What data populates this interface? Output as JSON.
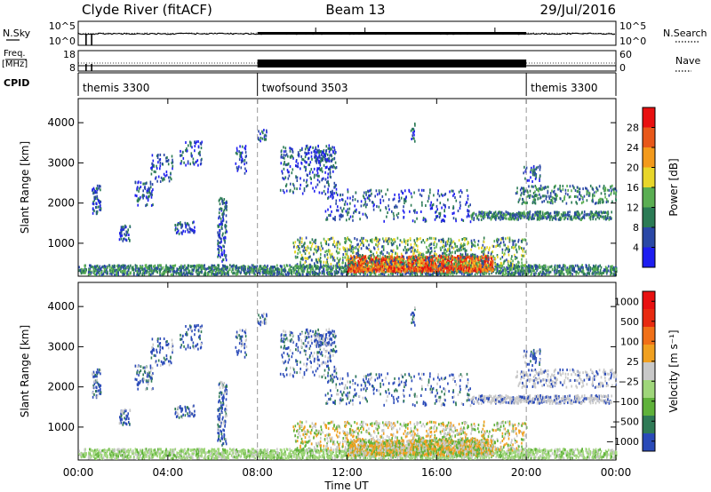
{
  "header": {
    "station": "Clyde River (fitACF)",
    "beam": "Beam 13",
    "date": "29/Jul/2016"
  },
  "chart_data": [
    {
      "type": "line",
      "name": "noise-panel",
      "left_label": "N.Sky",
      "left_ticks": [
        "10^5",
        "10^0"
      ],
      "right_label": "N.Search",
      "right_ticks": [
        "10^5",
        "10^0"
      ]
    },
    {
      "type": "line",
      "name": "frequency-panel",
      "left_label_top": "Freq.",
      "left_label_bottom": "[MHz]",
      "left_ticks": [
        "18",
        "8"
      ],
      "right_label": "Nave",
      "right_ticks": [
        "60",
        "0"
      ]
    },
    {
      "type": "table",
      "name": "cpid-panel",
      "label": "CPID",
      "segments": [
        {
          "name": "themis 3300",
          "start_hour": 0,
          "end_hour": 8
        },
        {
          "name": "twofsound 3503",
          "start_hour": 8,
          "end_hour": 20
        },
        {
          "name": "themis 3300",
          "start_hour": 20,
          "end_hour": 24
        }
      ]
    },
    {
      "type": "heatmap",
      "name": "power-panel",
      "ylabel": "Slant Range [km]",
      "yticks": [
        1000,
        2000,
        3000,
        4000
      ],
      "ylim": [
        180,
        4600
      ],
      "colorbar_label": "Power [dB]",
      "colorbar_ticks": [
        "4",
        "8",
        "12",
        "16",
        "20",
        "24",
        "28"
      ],
      "colorbar_colors": [
        "#1e1ef0",
        "#2a48a6",
        "#2b7b55",
        "#5aae52",
        "#e8d62a",
        "#f39a1c",
        "#e8581a",
        "#e81010"
      ]
    },
    {
      "type": "heatmap",
      "name": "velocity-panel",
      "ylabel": "Slant Range [km]",
      "yticks": [
        1000,
        2000,
        3000,
        4000
      ],
      "ylim": [
        180,
        4600
      ],
      "colorbar_label": "Velocity [m s⁻¹]",
      "colorbar_ticks": [
        "1000",
        "500",
        "100",
        "25",
        "−25",
        "−100",
        "−500",
        "−1000"
      ],
      "colorbar_colors": [
        "#2a4ab8",
        "#2f7a56",
        "#5fb23a",
        "#9fd67a",
        "#c8c8c8",
        "#f0a020",
        "#f07018",
        "#e82a10",
        "#e81010"
      ]
    }
  ],
  "xaxis": {
    "label": "Time UT",
    "ticks": [
      "00:00",
      "04:00",
      "08:00",
      "12:00",
      "16:00",
      "20:00",
      "00:00"
    ]
  }
}
